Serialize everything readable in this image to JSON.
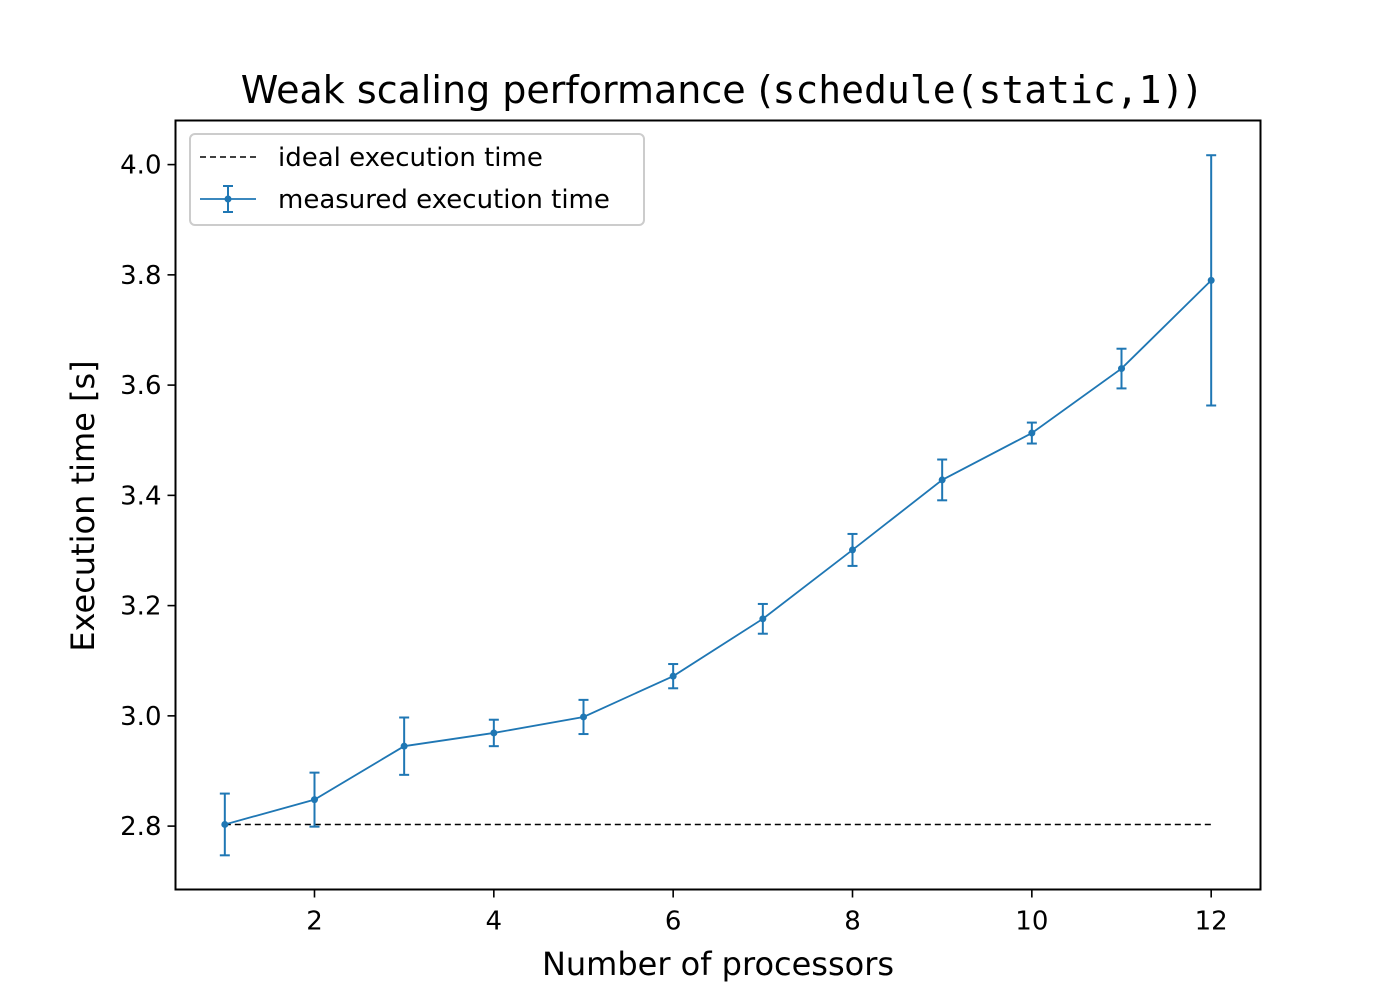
{
  "chart_data": {
    "type": "line",
    "title": {
      "prefix": "Weak scaling performance (",
      "code": "schedule(static,1)",
      "suffix": ")"
    },
    "xlabel": "Number of processors",
    "ylabel": "Execution time [s]",
    "xlim": [
      0.45,
      12.55
    ],
    "ylim": [
      2.685,
      4.08
    ],
    "xticks": [
      2,
      4,
      6,
      8,
      10,
      12
    ],
    "yticks": [
      2.8,
      3.0,
      3.2,
      3.4,
      3.6,
      3.8,
      4.0
    ],
    "grid": false,
    "legend_position": "top-left",
    "series": [
      {
        "name": "ideal execution time",
        "style": "dashed",
        "color": "#000000",
        "x": [
          1,
          12
        ],
        "y": [
          2.803,
          2.803
        ]
      },
      {
        "name": "measured execution time",
        "style": "solid-markers-errorbars",
        "color": "#1f77b4",
        "x": [
          1,
          2,
          3,
          4,
          5,
          6,
          7,
          8,
          9,
          10,
          11,
          12
        ],
        "y": [
          2.803,
          2.848,
          2.945,
          2.969,
          2.998,
          3.072,
          3.176,
          3.301,
          3.428,
          3.513,
          3.63,
          3.79
        ],
        "yerr": [
          0.056,
          0.049,
          0.052,
          0.024,
          0.031,
          0.022,
          0.027,
          0.029,
          0.037,
          0.019,
          0.036,
          0.227
        ]
      }
    ]
  }
}
